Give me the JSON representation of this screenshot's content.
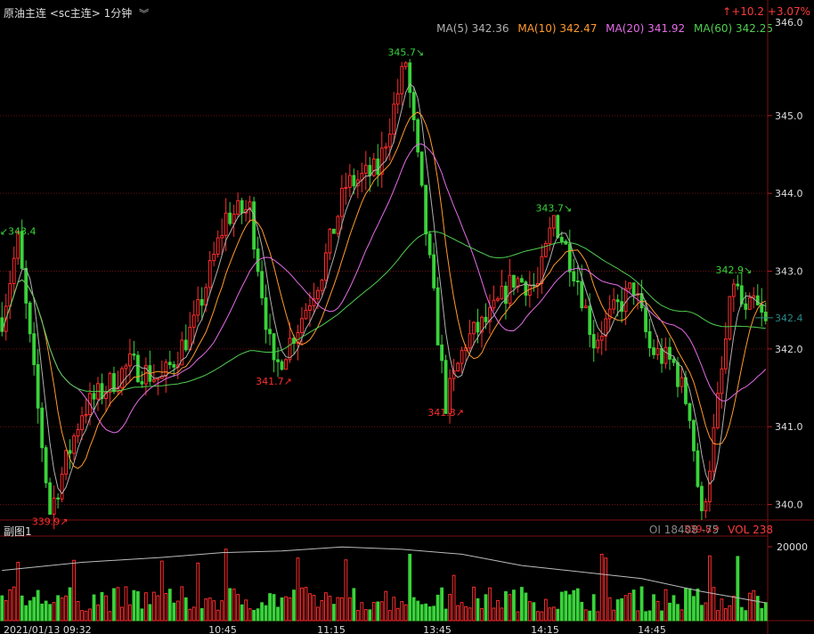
{
  "header": {
    "instrument": "原油主连",
    "code": "<sc主连>",
    "period": "1分钟",
    "menu_icon": "double-chevron-down-icon",
    "change": "↑+10.2 +3.07%"
  },
  "ma_legend": [
    {
      "label": "MA(5) 342.36",
      "color": "#b0b0b0"
    },
    {
      "label": "MA(10) 342.47",
      "color": "#ff9a2e"
    },
    {
      "label": "MA(20) 341.92",
      "color": "#e56ce8"
    },
    {
      "label": "MA(60) 342.25",
      "color": "#4fce4f"
    }
  ],
  "sub_panel": {
    "title": "副图1",
    "oi_label": "OI 18408 -75",
    "vol_label": "VOL 238",
    "y_tick": "20000"
  },
  "colors": {
    "up": "#ff2d2d",
    "down": "#39d33a",
    "grid": "#6e0f0f",
    "bg": "#000000"
  },
  "chart_data": {
    "type": "candlestick",
    "ylim": [
      339.8,
      346.2
    ],
    "y_ticks": [
      "340.0",
      "341.0",
      "342.0",
      "343.0",
      "344.0",
      "345.0"
    ],
    "top_tick_partial": "346.0",
    "current_price_label": "342.4",
    "current_price": 342.4,
    "x_ticks": [
      "2021/01/13 09:32",
      "10:45",
      "11:15",
      "13:45",
      "14:15",
      "14:45"
    ],
    "annotations": [
      {
        "text": "↙343.4",
        "color": "#39d33a",
        "bar": 4,
        "price": 343.4,
        "pos": "above"
      },
      {
        "text": "339.9↗",
        "color": "#ff2d2d",
        "bar": 12,
        "price": 339.9,
        "pos": "below"
      },
      {
        "text": "341.7↗",
        "color": "#ff2d2d",
        "bar": 68,
        "price": 341.7,
        "pos": "below"
      },
      {
        "text": "345.7↘",
        "color": "#39d33a",
        "bar": 101,
        "price": 345.7,
        "pos": "above"
      },
      {
        "text": "341.3↗",
        "color": "#ff2d2d",
        "bar": 111,
        "price": 341.3,
        "pos": "below"
      },
      {
        "text": "343.7↘",
        "color": "#39d33a",
        "bar": 138,
        "price": 343.7,
        "pos": "above"
      },
      {
        "text": "339.8↗",
        "color": "#ff2d2d",
        "bar": 175,
        "price": 339.8,
        "pos": "below"
      },
      {
        "text": "342.9↘",
        "color": "#39d33a",
        "bar": 183,
        "price": 342.9,
        "pos": "above"
      }
    ],
    "price_path": [
      [
        0,
        342.4
      ],
      [
        4,
        343.4
      ],
      [
        12,
        339.9
      ],
      [
        20,
        341.2
      ],
      [
        32,
        341.8
      ],
      [
        40,
        341.6
      ],
      [
        48,
        342.3
      ],
      [
        56,
        343.7
      ],
      [
        62,
        343.8
      ],
      [
        68,
        341.7
      ],
      [
        74,
        342.3
      ],
      [
        80,
        343.0
      ],
      [
        86,
        344.1
      ],
      [
        94,
        344.3
      ],
      [
        101,
        345.7
      ],
      [
        104,
        344.4
      ],
      [
        111,
        341.3
      ],
      [
        116,
        342.1
      ],
      [
        122,
        342.4
      ],
      [
        128,
        342.9
      ],
      [
        134,
        342.8
      ],
      [
        138,
        343.7
      ],
      [
        144,
        342.9
      ],
      [
        148,
        342.1
      ],
      [
        152,
        342.4
      ],
      [
        158,
        342.8
      ],
      [
        162,
        342.0
      ],
      [
        168,
        341.8
      ],
      [
        172,
        341.2
      ],
      [
        175,
        339.8
      ],
      [
        178,
        340.9
      ],
      [
        183,
        342.9
      ],
      [
        186,
        342.4
      ],
      [
        188,
        342.6
      ],
      [
        191,
        342.3
      ]
    ],
    "volume_max": 20000,
    "oi_path": [
      [
        0,
        0.62
      ],
      [
        20,
        0.72
      ],
      [
        40,
        0.78
      ],
      [
        55,
        0.84
      ],
      [
        70,
        0.86
      ],
      [
        85,
        0.91
      ],
      [
        100,
        0.88
      ],
      [
        115,
        0.82
      ],
      [
        130,
        0.68
      ],
      [
        145,
        0.6
      ],
      [
        160,
        0.52
      ],
      [
        175,
        0.36
      ],
      [
        191,
        0.22
      ]
    ]
  }
}
